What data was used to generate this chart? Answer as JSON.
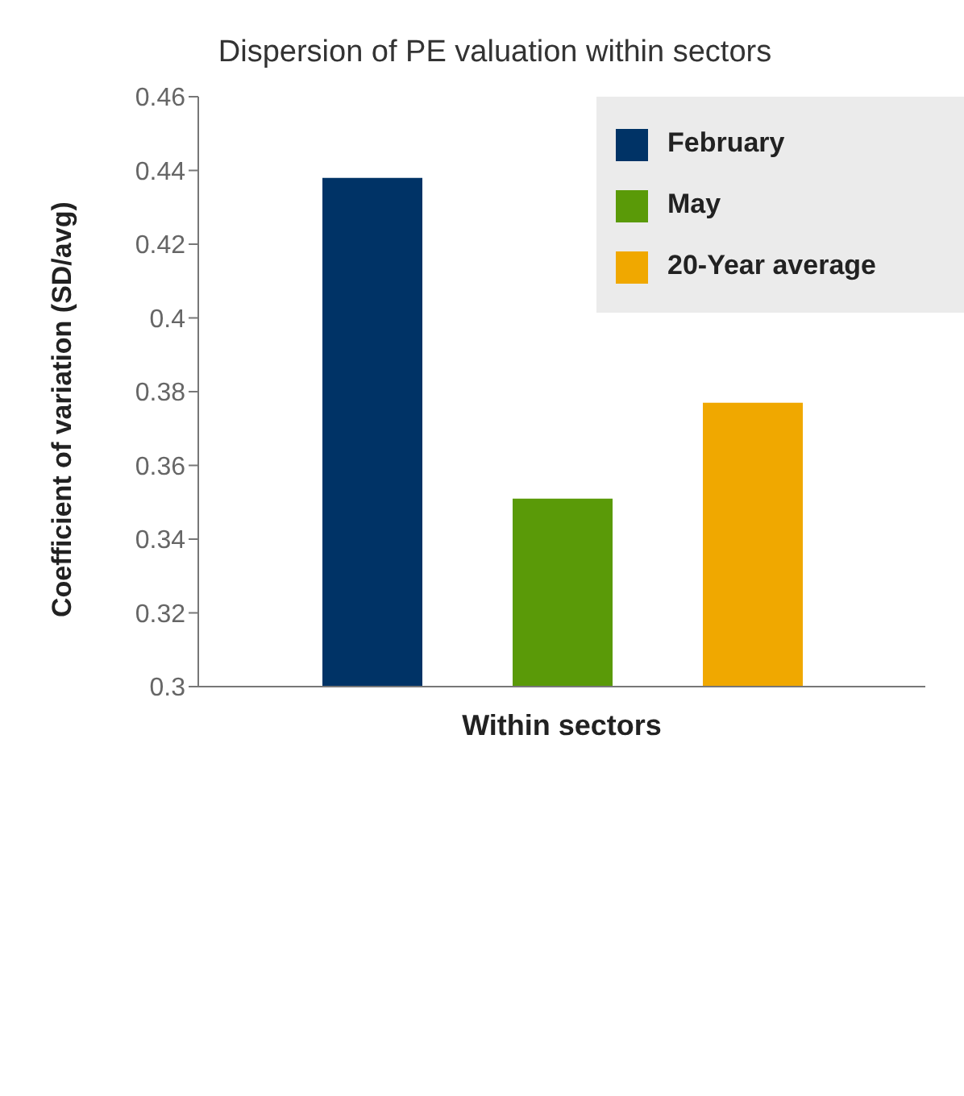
{
  "chart_data": {
    "type": "bar",
    "title": "Dispersion of PE valuation within sectors",
    "ylabel": "Coefficient of variation (SD/avg)",
    "xlabel": "Within sectors",
    "categories": [
      null
    ],
    "series": [
      {
        "name": "February",
        "color": "#003366",
        "values": [
          0.438
        ]
      },
      {
        "name": "May",
        "color": "#5a9a08",
        "values": [
          0.351
        ]
      },
      {
        "name": "20-Year average",
        "color": "#f0a800",
        "values": [
          0.377
        ]
      }
    ],
    "ylim": [
      0.3,
      0.46
    ],
    "yticks": [
      0.3,
      0.32,
      0.34,
      0.36,
      0.38,
      0.4,
      0.42,
      0.44,
      0.46
    ],
    "grid": false,
    "legend": "top right"
  }
}
